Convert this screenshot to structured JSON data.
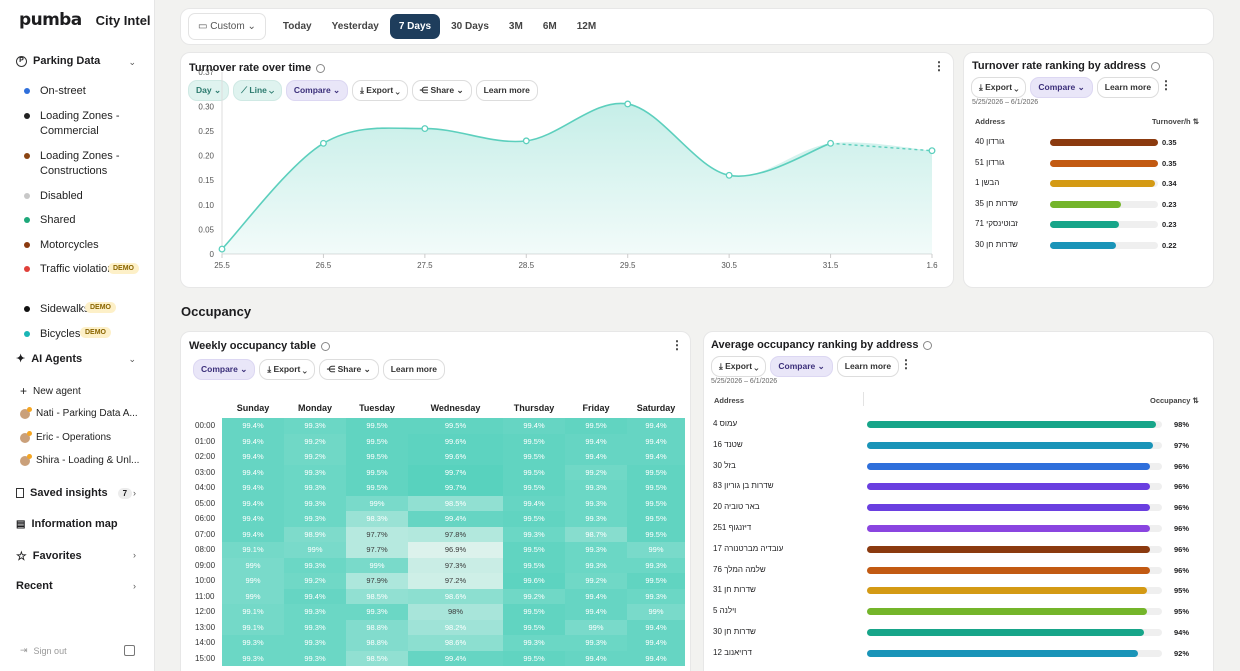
{
  "brand": {
    "logo": "pumba",
    "app": "City Intel"
  },
  "sidebar": {
    "parking_section": "Parking Data",
    "items": [
      {
        "label": "On-street",
        "color": "#2f6fdb"
      },
      {
        "label": "Loading Zones - Commercial",
        "color": "#222222"
      },
      {
        "label": "Loading Zones - Constructions",
        "color": "#8b4513"
      },
      {
        "label": "Disabled",
        "color": "#c8c8c8"
      },
      {
        "label": "Shared",
        "color": "#1ea87a"
      },
      {
        "label": "Motorcycles",
        "color": "#8b3a0f"
      },
      {
        "label": "Traffic violations",
        "color": "#e0403a",
        "demo": "DEMO"
      },
      {
        "label": "Sidewalks",
        "color": "#111111",
        "demo": "DEMO"
      },
      {
        "label": "Bicycles",
        "color": "#19b5b5",
        "demo": "DEMO"
      }
    ],
    "agents_section": "AI Agents",
    "new_agent": "New agent",
    "agents": [
      "Nati - Parking Data A...",
      "Eric - Operations",
      "Shira - Loading & Unl..."
    ],
    "saved_insights": "Saved insights",
    "saved_count": "7",
    "information_map": "Information map",
    "favorites": "Favorites",
    "recent": "Recent",
    "sign_out": "Sign out"
  },
  "topbar": {
    "custom": "Custom",
    "ranges": [
      "Today",
      "Yesterday",
      "7 Days",
      "30 Days",
      "3M",
      "6M",
      "12M"
    ],
    "selected": "7 Days"
  },
  "turnover_chart": {
    "title": "Turnover rate over time",
    "chips": [
      "Day",
      "Line",
      "Compare",
      "Export",
      "Share",
      "Learn more"
    ],
    "chart_data": {
      "type": "line",
      "x": [
        "25.5",
        "26.5",
        "27.5",
        "28.5",
        "29.5",
        "30.5",
        "31.5",
        "1.6"
      ],
      "series": [
        {
          "values": [
            0.01,
            0.225,
            0.255,
            0.23,
            0.305,
            0.16,
            0.225,
            0.21
          ]
        }
      ],
      "yticks": [
        "0",
        "0.05",
        "0.10",
        "0.15",
        "0.20",
        "0.25",
        "0.30",
        "0.37"
      ],
      "ylim": [
        0,
        0.37
      ],
      "last_segment": "dashed",
      "color": "#5ccfbd"
    }
  },
  "turnover_rank": {
    "title": "Turnover rate ranking by address",
    "chips": [
      "Export",
      "Compare",
      "Learn more"
    ],
    "date_range": "5/25/2026 – 6/1/2026",
    "col_address": "Address",
    "col_value": "Turnover/h",
    "rows": [
      {
        "name": "גורדון 40",
        "value": "0.35",
        "fraction": 1.0,
        "color": "#8b3a0f"
      },
      {
        "name": "גורדון 51",
        "value": "0.35",
        "fraction": 1.0,
        "color": "#c25a12"
      },
      {
        "name": "הבשן 1",
        "value": "0.34",
        "fraction": 0.97,
        "color": "#d49a14"
      },
      {
        "name": "שדרות חן 35",
        "value": "0.23",
        "fraction": 0.66,
        "color": "#74b52a"
      },
      {
        "name": "זבוטינסקי 71",
        "value": "0.23",
        "fraction": 0.64,
        "color": "#17a589"
      },
      {
        "name": "שדרות חן 30",
        "value": "0.22",
        "fraction": 0.61,
        "color": "#1a94b8"
      }
    ]
  },
  "occupancy": {
    "section_title": "Occupancy",
    "table_title": "Weekly occupancy table",
    "chips": [
      "Compare",
      "Export",
      "Share",
      "Learn more"
    ],
    "days": [
      "Sunday",
      "Monday",
      "Tuesday",
      "Wednesday",
      "Thursday",
      "Friday",
      "Saturday"
    ],
    "rows": [
      {
        "time": "00:00",
        "values": [
          "99.4%",
          "99.3%",
          "99.5%",
          "99.5%",
          "99.4%",
          "99.5%",
          "99.4%"
        ]
      },
      {
        "time": "01:00",
        "values": [
          "99.4%",
          "99.2%",
          "99.5%",
          "99.6%",
          "99.5%",
          "99.4%",
          "99.4%"
        ]
      },
      {
        "time": "02:00",
        "values": [
          "99.4%",
          "99.2%",
          "99.5%",
          "99.6%",
          "99.5%",
          "99.4%",
          "99.4%"
        ]
      },
      {
        "time": "03:00",
        "values": [
          "99.4%",
          "99.3%",
          "99.5%",
          "99.7%",
          "99.5%",
          "99.2%",
          "99.5%"
        ]
      },
      {
        "time": "04:00",
        "values": [
          "99.4%",
          "99.3%",
          "99.5%",
          "99.7%",
          "99.5%",
          "99.3%",
          "99.5%"
        ]
      },
      {
        "time": "05:00",
        "values": [
          "99.4%",
          "99.3%",
          "99%",
          "98.5%",
          "99.4%",
          "99.3%",
          "99.5%"
        ]
      },
      {
        "time": "06:00",
        "values": [
          "99.4%",
          "99.3%",
          "98.3%",
          "99.4%",
          "99.5%",
          "99.3%",
          "99.5%"
        ]
      },
      {
        "time": "07:00",
        "values": [
          "99.4%",
          "98.9%",
          "97.7%",
          "97.8%",
          "99.3%",
          "98.7%",
          "99.5%"
        ]
      },
      {
        "time": "08:00",
        "values": [
          "99.1%",
          "99%",
          "97.7%",
          "96.9%",
          "99.5%",
          "99.3%",
          "99%"
        ]
      },
      {
        "time": "09:00",
        "values": [
          "99%",
          "99.3%",
          "99%",
          "97.3%",
          "99.5%",
          "99.3%",
          "99.3%"
        ]
      },
      {
        "time": "10:00",
        "values": [
          "99%",
          "99.2%",
          "97.9%",
          "97.2%",
          "99.6%",
          "99.2%",
          "99.5%"
        ]
      },
      {
        "time": "11:00",
        "values": [
          "99%",
          "99.4%",
          "98.5%",
          "98.6%",
          "99.2%",
          "99.4%",
          "99.3%"
        ]
      },
      {
        "time": "12:00",
        "values": [
          "99.1%",
          "99.3%",
          "99.3%",
          "98%",
          "99.5%",
          "99.4%",
          "99%"
        ]
      },
      {
        "time": "13:00",
        "values": [
          "99.1%",
          "99.3%",
          "98.8%",
          "98.2%",
          "99.5%",
          "99%",
          "99.4%"
        ]
      },
      {
        "time": "14:00",
        "values": [
          "99.3%",
          "99.3%",
          "98.8%",
          "98.6%",
          "99.3%",
          "99.3%",
          "99.4%"
        ]
      },
      {
        "time": "15:00",
        "values": [
          "99.3%",
          "99.3%",
          "98.5%",
          "99.4%",
          "99.5%",
          "99.4%",
          "99.4%"
        ]
      }
    ]
  },
  "occupancy_rank": {
    "title": "Average occupancy ranking by address",
    "chips": [
      "Export",
      "Compare",
      "Learn more"
    ],
    "date_range": "5/25/2026 – 6/1/2026",
    "col_address": "Address",
    "col_value": "Occupancy",
    "rows": [
      {
        "name": "עמוס 4",
        "value": "98%",
        "fraction": 0.98,
        "color": "#17a589"
      },
      {
        "name": "שטנד 16",
        "value": "97%",
        "fraction": 0.97,
        "color": "#1a94b8"
      },
      {
        "name": "בזל 30",
        "value": "96%",
        "fraction": 0.96,
        "color": "#2f6fdb"
      },
      {
        "name": "שדרות בן גוריון 83",
        "value": "96%",
        "fraction": 0.96,
        "color": "#6a3fe0"
      },
      {
        "name": "באר טוביה 20",
        "value": "96%",
        "fraction": 0.96,
        "color": "#6a3fe0"
      },
      {
        "name": "דיזנגוף 251",
        "value": "96%",
        "fraction": 0.96,
        "color": "#8a45e0"
      },
      {
        "name": "עובדיה מברטנורה 17",
        "value": "96%",
        "fraction": 0.96,
        "color": "#8b3a0f"
      },
      {
        "name": "שלמה המלך 76",
        "value": "96%",
        "fraction": 0.96,
        "color": "#c25a12"
      },
      {
        "name": "שדרות חן 31",
        "value": "95%",
        "fraction": 0.95,
        "color": "#d49a14"
      },
      {
        "name": "וילנה 5",
        "value": "95%",
        "fraction": 0.95,
        "color": "#74b52a"
      },
      {
        "name": "שדרות חן 30",
        "value": "94%",
        "fraction": 0.94,
        "color": "#17a589"
      },
      {
        "name": "דרויאנוב 12",
        "value": "92%",
        "fraction": 0.92,
        "color": "#1a94b8"
      }
    ]
  }
}
